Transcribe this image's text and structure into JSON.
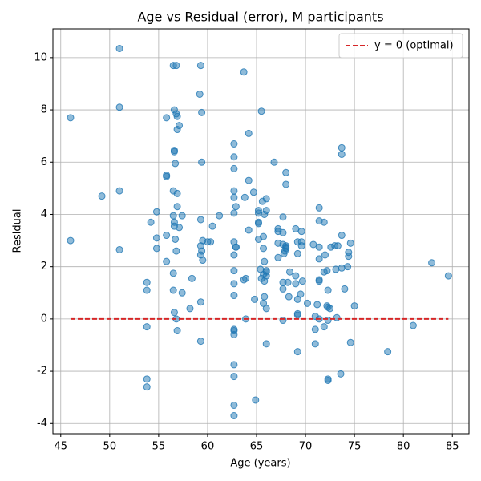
{
  "chart_data": {
    "type": "scatter",
    "title": "Age vs Residual (error), M participants",
    "x_label": "Age (years)",
    "y_label": "Residual",
    "xlim": [
      44.2,
      86.7
    ],
    "ylim": [
      -4.39,
      11.1
    ],
    "xticks": [
      45,
      50,
      55,
      60,
      65,
      70,
      75,
      80,
      85
    ],
    "yticks": [
      -4,
      -2,
      0,
      2,
      4,
      6,
      8,
      10
    ],
    "grid": true,
    "color": "#1f77b4",
    "opacity": 0.5,
    "legend": "upper right",
    "reference_line": {
      "label": "y = 0 (optimal)",
      "y": 0,
      "x": [
        46,
        84.6
      ],
      "color": "#d62728"
    },
    "x": [
      46.0,
      46.0,
      49.2,
      51.0,
      51.0,
      51.0,
      51.0,
      53.8,
      53.8,
      53.8,
      53.8,
      53.8,
      54.2,
      54.8,
      54.8,
      54.8,
      55.8,
      55.8,
      55.8,
      55.8,
      55.8,
      56.5,
      56.8,
      56.6,
      56.8,
      56.9,
      57.1,
      56.9,
      56.6,
      56.6,
      56.7,
      56.5,
      56.9,
      56.9,
      56.5,
      57.4,
      56.6,
      56.6,
      57.1,
      56.7,
      56.8,
      56.5,
      56.5,
      57.4,
      56.6,
      56.8,
      56.9,
      58.2,
      58.4,
      59.3,
      59.2,
      59.4,
      59.4,
      59.3,
      59.3,
      59.5,
      59.3,
      59.4,
      59.5,
      59.3,
      59.3,
      60.0,
      60.3,
      60.5,
      61.2,
      62.7,
      62.7,
      62.7,
      62.7,
      62.7,
      62.9,
      62.7,
      62.7,
      62.9,
      62.9,
      62.7,
      62.7,
      62.7,
      62.7,
      62.7,
      62.7,
      62.7,
      62.7,
      62.7,
      62.7,
      62.7,
      63.7,
      64.2,
      63.8,
      64.2,
      64.2,
      63.7,
      63.9,
      63.9,
      64.7,
      64.9,
      65.5,
      65.2,
      65.2,
      65.6,
      65.8,
      66.0,
      66.0,
      65.2,
      65.2,
      65.7,
      65.2,
      65.7,
      65.8,
      65.4,
      66.0,
      66.0,
      65.7,
      66.0,
      65.5,
      65.8,
      64.8,
      65.8,
      65.7,
      66.0,
      66.0,
      66.8,
      67.2,
      67.2,
      67.7,
      67.2,
      67.7,
      68.0,
      68.0,
      68.0,
      67.8,
      67.9,
      67.2,
      67.7,
      68.0,
      68.0,
      67.7,
      68.2,
      67.7,
      68.4,
      68.3,
      67.7,
      69.0,
      69.6,
      69.2,
      69.6,
      69.6,
      69.2,
      69.0,
      69.7,
      69.0,
      69.5,
      69.2,
      69.2,
      69.2,
      69.2,
      70.2,
      70.8,
      71.2,
      71.0,
      71.0,
      71.0,
      71.4,
      71.4,
      71.9,
      71.4,
      71.4,
      72.0,
      71.4,
      71.4,
      71.9,
      72.2,
      72.3,
      71.4,
      71.9,
      72.2,
      72.3,
      72.5,
      72.3,
      72.3,
      72.3,
      72.6,
      73.0,
      73.1,
      73.2,
      73.3,
      73.7,
      73.7,
      73.7,
      73.7,
      74.0,
      74.3,
      74.4,
      74.4,
      74.6,
      73.6,
      74.6,
      75.0,
      78.4,
      81.0,
      82.9,
      84.6
    ],
    "values": [
      7.7,
      3.0,
      4.7,
      10.35,
      8.1,
      4.9,
      2.65,
      1.4,
      1.1,
      -0.3,
      -2.3,
      -2.6,
      3.7,
      4.1,
      3.1,
      2.7,
      5.5,
      5.45,
      7.7,
      3.2,
      2.2,
      9.7,
      9.7,
      8.0,
      7.85,
      7.75,
      7.4,
      7.25,
      6.45,
      6.4,
      5.95,
      4.9,
      4.8,
      4.3,
      3.95,
      3.95,
      3.7,
      3.55,
      3.5,
      3.05,
      2.6,
      1.75,
      1.1,
      1.0,
      0.25,
      0.0,
      -0.45,
      0.4,
      1.55,
      9.7,
      8.6,
      7.9,
      6.0,
      3.8,
      2.8,
      3.0,
      2.45,
      2.6,
      2.25,
      0.65,
      -0.85,
      2.95,
      2.95,
      3.55,
      3.95,
      6.7,
      6.2,
      5.75,
      4.9,
      4.65,
      4.3,
      4.05,
      2.95,
      2.75,
      2.75,
      2.45,
      1.85,
      1.35,
      0.9,
      -0.4,
      -0.45,
      -0.6,
      -1.75,
      -2.2,
      -3.3,
      -3.7,
      9.45,
      7.1,
      4.65,
      5.3,
      3.4,
      1.5,
      1.55,
      0.0,
      4.85,
      -3.1,
      7.95,
      4.15,
      4.05,
      4.5,
      4.0,
      4.6,
      4.15,
      3.7,
      3.65,
      3.15,
      3.05,
      2.7,
      2.2,
      1.9,
      1.85,
      1.8,
      1.7,
      1.65,
      1.55,
      1.45,
      0.75,
      0.85,
      0.6,
      0.4,
      -0.95,
      6.0,
      3.45,
      3.35,
      3.3,
      2.9,
      2.85,
      2.8,
      2.75,
      2.7,
      2.5,
      2.6,
      2.35,
      3.9,
      5.6,
      5.15,
      1.4,
      1.4,
      1.15,
      1.8,
      0.85,
      -0.05,
      3.45,
      3.35,
      2.95,
      2.95,
      2.8,
      2.5,
      1.65,
      1.45,
      1.35,
      0.95,
      0.75,
      0.2,
      0.15,
      -1.25,
      0.6,
      2.85,
      0.55,
      0.1,
      -0.4,
      -0.95,
      4.25,
      3.75,
      3.7,
      2.75,
      2.3,
      2.45,
      1.5,
      1.45,
      1.8,
      1.85,
      1.1,
      0.0,
      -0.3,
      0.5,
      0.45,
      0.4,
      -0.05,
      -2.3,
      -2.35,
      2.75,
      2.8,
      1.9,
      0.05,
      2.8,
      6.55,
      6.3,
      3.2,
      1.95,
      1.15,
      2.0,
      2.4,
      2.55,
      2.9,
      -2.1,
      -0.9,
      0.5,
      -1.25,
      -0.25,
      2.15,
      1.65
    ]
  }
}
